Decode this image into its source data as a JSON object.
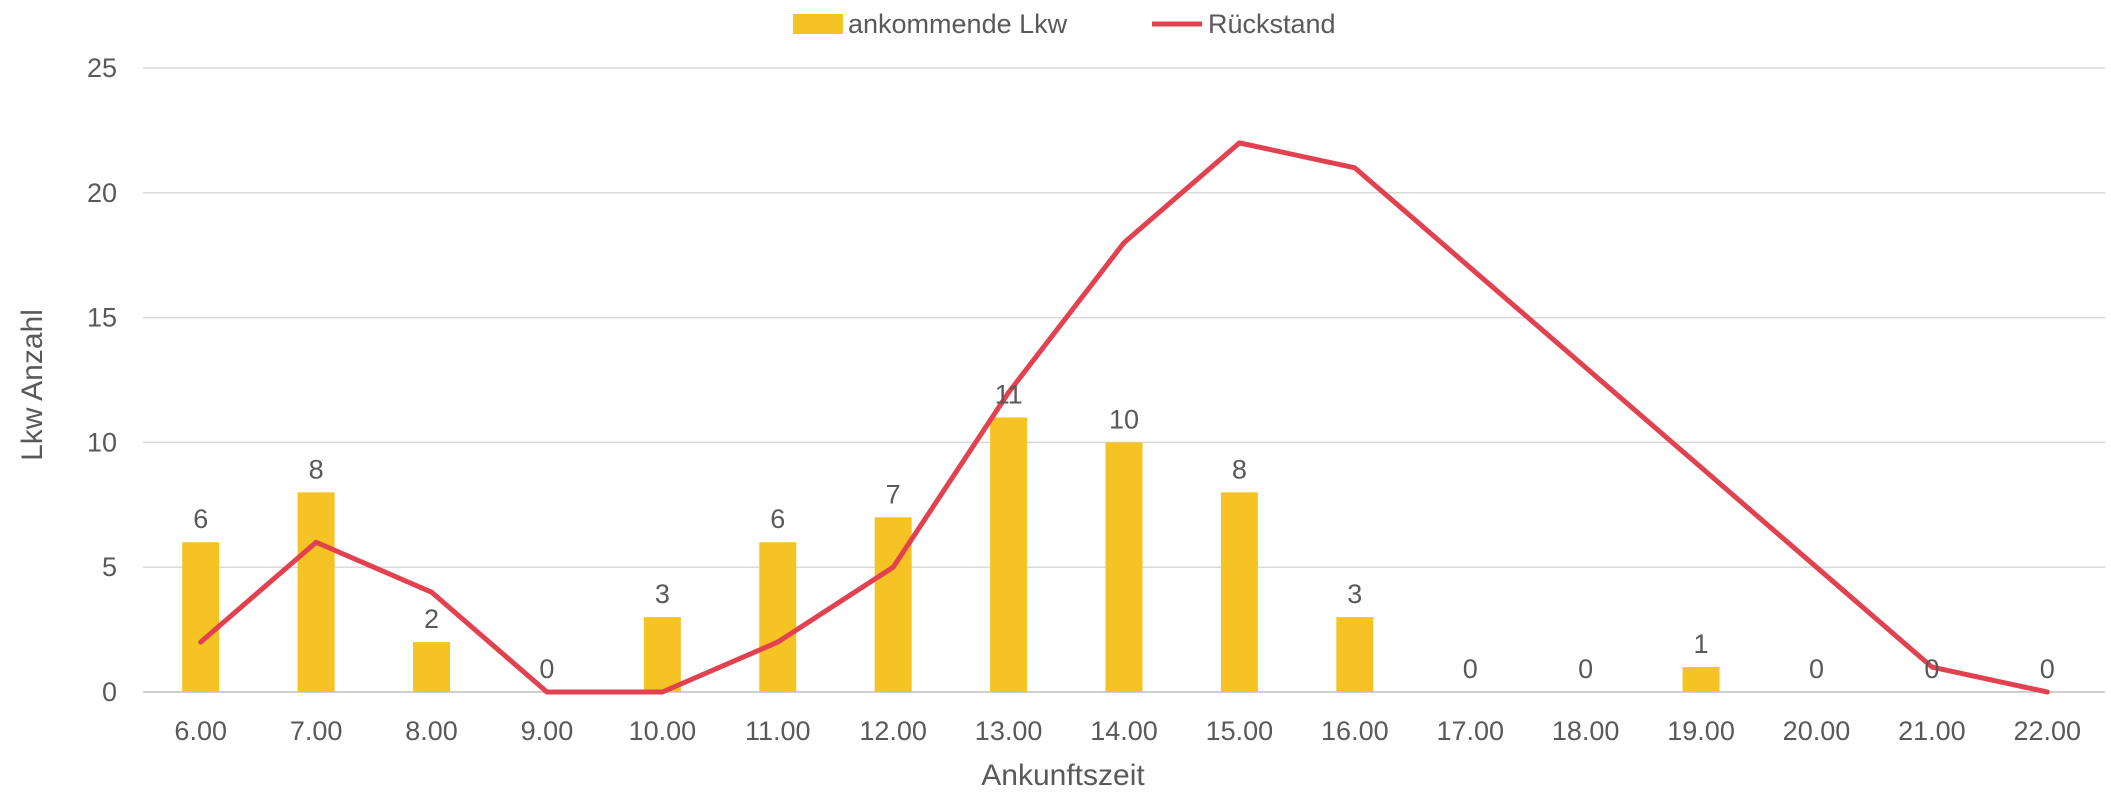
{
  "chart_data": {
    "type": "bar",
    "categories": [
      "6.00",
      "7.00",
      "8.00",
      "9.00",
      "10.00",
      "11.00",
      "12.00",
      "13.00",
      "14.00",
      "15.00",
      "16.00",
      "17.00",
      "18.00",
      "19.00",
      "20.00",
      "21.00",
      "22.00"
    ],
    "series": [
      {
        "name": "ankommende Lkw",
        "type": "bar",
        "color": "#F6C324",
        "values": [
          6,
          8,
          2,
          0,
          3,
          6,
          7,
          11,
          10,
          8,
          3,
          0,
          0,
          1,
          0,
          0,
          0
        ]
      },
      {
        "name": "Rückstand",
        "type": "line",
        "color": "#E2424F",
        "values": [
          2,
          6,
          4,
          0,
          0,
          2,
          5,
          12,
          18,
          22,
          21,
          17,
          13,
          9,
          5,
          1,
          0
        ]
      }
    ],
    "xlabel": "Ankunftszeit",
    "ylabel": "Lkw Anzahl",
    "ylim": [
      0,
      25
    ],
    "yticks": [
      0,
      5,
      10,
      15,
      20,
      25
    ],
    "grid": true,
    "legend_position": "top-center"
  }
}
